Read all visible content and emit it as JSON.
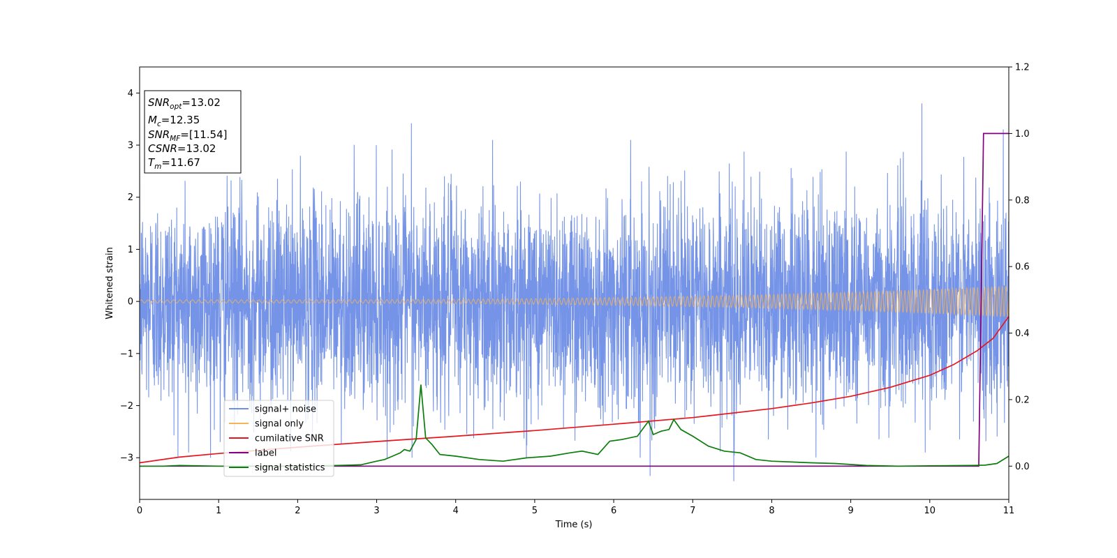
{
  "chart_data": {
    "type": "line",
    "xlabel": "Time (s)",
    "ylabel": "Whitened strain",
    "xlim": [
      0,
      11
    ],
    "ylim_left": [
      -3.8,
      4.5
    ],
    "ylim_right": [
      -0.1,
      1.2
    ],
    "x_ticks": [
      0,
      1,
      2,
      3,
      4,
      5,
      6,
      7,
      8,
      9,
      10,
      11
    ],
    "y_ticks_left": [
      -3,
      -2,
      -1,
      0,
      1,
      2,
      3,
      4
    ],
    "y_ticks_left_labels": [
      "−3",
      "−2",
      "−1",
      "0",
      "1",
      "2",
      "3",
      "4"
    ],
    "y_ticks_right": [
      0.0,
      0.2,
      0.4,
      0.6,
      0.8,
      1.0,
      1.2
    ],
    "y_ticks_right_labels": [
      "0.0",
      "0.2",
      "0.4",
      "0.6",
      "0.8",
      "1.0",
      "1.2"
    ],
    "grid": false,
    "legend_position": "lower-left",
    "info_box": {
      "lines": [
        {
          "base": "SNR",
          "sub": "opt",
          "rest": "=13.02"
        },
        {
          "base": "M",
          "sub": "c",
          "rest": "=12.35"
        },
        {
          "base": "SNR",
          "sub": "MF",
          "rest": "=[11.54]"
        },
        {
          "base": "CSNR",
          "sub": "",
          "rest": "=13.02"
        },
        {
          "base": "T",
          "sub": "m",
          "rest": "=11.67"
        }
      ]
    },
    "series": [
      {
        "name": "signal+ noise",
        "axis": "left",
        "color": "#6f8ee6",
        "style": "noise",
        "sigma": 1.0,
        "spikes": [
          [
            3.44,
            3.42
          ],
          [
            9.9,
            3.8
          ],
          [
            10.93,
            3.3
          ],
          [
            6.46,
            -3.35
          ],
          [
            7.52,
            -3.45
          ],
          [
            1.02,
            -2.7
          ],
          [
            0.62,
            -2.9
          ]
        ]
      },
      {
        "name": "signal only",
        "axis": "left",
        "color": "#f5b45a",
        "style": "chirp",
        "amplitude_start": 0.03,
        "amplitude_end": 0.3
      },
      {
        "name": "cumilative SNR",
        "axis": "right",
        "color": "#e8141c",
        "x": [
          0,
          0.5,
          1,
          2,
          3,
          4,
          5,
          6,
          7,
          8,
          8.5,
          9,
          9.5,
          10,
          10.3,
          10.6,
          10.8,
          11
        ],
        "y": [
          0.01,
          0.027,
          0.038,
          0.057,
          0.074,
          0.09,
          0.107,
          0.126,
          0.146,
          0.173,
          0.19,
          0.21,
          0.237,
          0.273,
          0.305,
          0.347,
          0.384,
          0.45
        ]
      },
      {
        "name": "label",
        "axis": "right",
        "color": "#800080",
        "x": [
          0,
          10.62,
          10.68,
          11
        ],
        "y": [
          0.0,
          0.0,
          1.0,
          1.0
        ]
      },
      {
        "name": "signal statistics",
        "axis": "right",
        "color": "#0a7d0a",
        "x": [
          0,
          0.3,
          0.5,
          1,
          1.5,
          2,
          2.5,
          2.8,
          3.0,
          3.1,
          3.2,
          3.3,
          3.35,
          3.42,
          3.5,
          3.56,
          3.62,
          3.7,
          3.8,
          4.0,
          4.3,
          4.6,
          4.9,
          5.2,
          5.45,
          5.6,
          5.8,
          5.95,
          6.1,
          6.3,
          6.44,
          6.5,
          6.6,
          6.7,
          6.76,
          6.85,
          7.0,
          7.2,
          7.4,
          7.6,
          7.8,
          8.0,
          8.5,
          8.8,
          9.2,
          9.6,
          10.0,
          10.5,
          10.7,
          10.85,
          11.0
        ],
        "y": [
          0.0,
          0.0,
          0.002,
          0.0,
          0.0,
          0.0,
          0.002,
          0.004,
          0.015,
          0.02,
          0.03,
          0.04,
          0.05,
          0.045,
          0.08,
          0.245,
          0.085,
          0.065,
          0.035,
          0.03,
          0.02,
          0.015,
          0.025,
          0.03,
          0.04,
          0.045,
          0.035,
          0.075,
          0.08,
          0.09,
          0.135,
          0.095,
          0.105,
          0.11,
          0.14,
          0.11,
          0.09,
          0.06,
          0.045,
          0.04,
          0.02,
          0.015,
          0.01,
          0.008,
          0.002,
          0.0,
          0.001,
          0.002,
          0.003,
          0.008,
          0.03
        ]
      }
    ]
  }
}
